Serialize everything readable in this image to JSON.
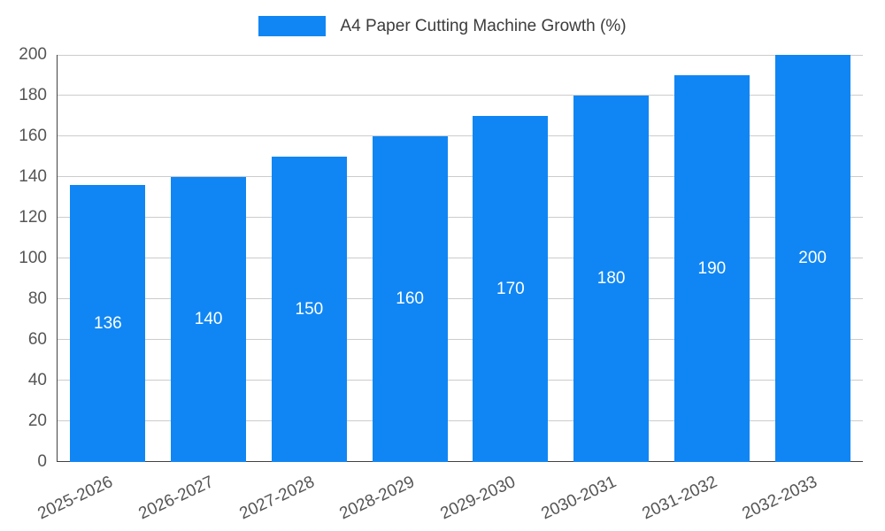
{
  "chart_data": {
    "type": "bar",
    "title": "A4 Paper Cutting Machine Growth (%)",
    "categories": [
      "2025-2026",
      "2026-2027",
      "2027-2028",
      "2028-2029",
      "2029-2030",
      "2030-2031",
      "2031-2032",
      "2032-2033"
    ],
    "values": [
      136,
      140,
      150,
      160,
      170,
      180,
      190,
      200
    ],
    "xlabel": "",
    "ylabel": "",
    "ylim": [
      0,
      200
    ],
    "yticks": [
      0,
      20,
      40,
      60,
      80,
      100,
      120,
      140,
      160,
      180,
      200
    ],
    "grid": true,
    "legend_position": "top",
    "bar_color": "#1086f4",
    "value_label_color": "#ffffff",
    "axis_text_color": "#555555",
    "gridline_color": "#cccccc"
  }
}
